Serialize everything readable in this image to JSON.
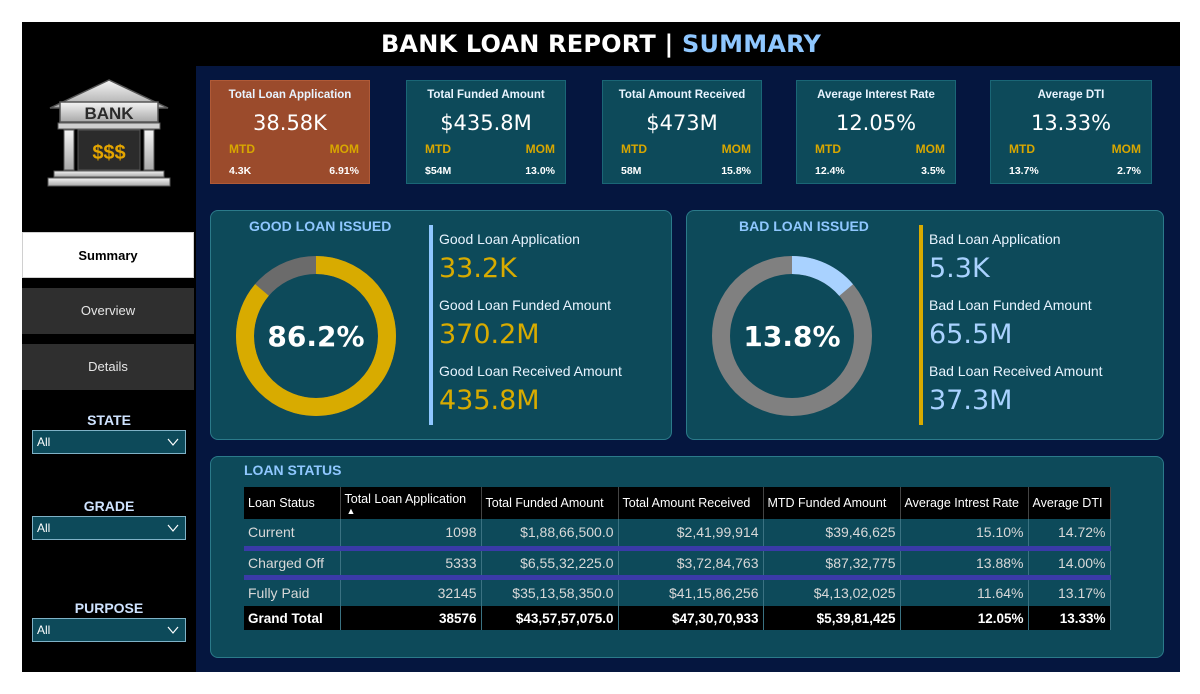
{
  "header": {
    "title_main": "BANK LOAN REPORT | ",
    "title_accent": "SUMMARY"
  },
  "logo": {
    "text": "BANK",
    "symbols": "$$$"
  },
  "nav": [
    {
      "label": "Summary",
      "active": true
    },
    {
      "label": "Overview",
      "active": false
    },
    {
      "label": "Details",
      "active": false
    }
  ],
  "filters": [
    {
      "label": "STATE",
      "value": "All"
    },
    {
      "label": "GRADE",
      "value": "All"
    },
    {
      "label": "PURPOSE",
      "value": "All"
    }
  ],
  "kpis": [
    {
      "title": "Total Loan Application",
      "value": "38.58K",
      "mtd_label": "MTD",
      "mom_label": "MOM",
      "mtd": "4.3K",
      "mom": "6.91%"
    },
    {
      "title": "Total Funded Amount",
      "value": "$435.8M",
      "mtd_label": "MTD",
      "mom_label": "MOM",
      "mtd": "$54M",
      "mom": "13.0%"
    },
    {
      "title": "Total Amount Received",
      "value": "$473M",
      "mtd_label": "MTD",
      "mom_label": "MOM",
      "mtd": "58M",
      "mom": "15.8%"
    },
    {
      "title": "Average Interest  Rate",
      "value": "12.05%",
      "mtd_label": "MTD",
      "mom_label": "MOM",
      "mtd": "12.4%",
      "mom": "3.5%"
    },
    {
      "title": "Average DTI",
      "value": "13.33%",
      "mtd_label": "MTD",
      "mom_label": "MOM",
      "mtd": "13.7%",
      "mom": "2.7%"
    }
  ],
  "good_loan": {
    "title": "GOOD LOAN ISSUED",
    "percent": "86.2%",
    "percent_value": 86.2,
    "application_label": "Good Loan Application",
    "application_value": "33.2K",
    "funded_label": "Good Loan Funded Amount",
    "funded_value": "370.2M",
    "received_label": "Good Loan Received Amount",
    "received_value": "435.8M",
    "ring_color": "#d8ab00",
    "rest_color": "#6b6b6b",
    "value_color": "#d8ab00",
    "bar_color": "#8fc7ff"
  },
  "bad_loan": {
    "title": "BAD LOAN ISSUED",
    "percent": "13.8%",
    "percent_value": 13.8,
    "application_label": "Bad Loan Application",
    "application_value": "5.3K",
    "funded_label": "Bad Loan Funded Amount",
    "funded_value": "65.5M",
    "received_label": "Bad Loan Received Amount",
    "received_value": "37.3M",
    "ring_color": "#a9d2ff",
    "rest_color": "#808080",
    "value_color": "#a9d2ff",
    "bar_color": "#d8ab00"
  },
  "loan_status": {
    "title": "LOAN STATUS",
    "headers": [
      "Loan Status",
      "Total Loan Application",
      "Total Funded Amount",
      "Total Amount Received",
      "MTD Funded Amount",
      "Average Intrest Rate",
      "Average DTI"
    ],
    "rows": [
      [
        "Current",
        "1098",
        "$1,88,66,500.0",
        "$2,41,99,914",
        "$39,46,625",
        "15.10%",
        "14.72%"
      ],
      [
        "Charged Off",
        "5333",
        "$6,55,32,225.0",
        "$3,72,84,763",
        "$87,32,775",
        "13.88%",
        "14.00%"
      ],
      [
        "Fully Paid",
        "32145",
        "$35,13,58,350.0",
        "$41,15,86,256",
        "$4,13,02,025",
        "11.64%",
        "13.17%"
      ]
    ],
    "total": [
      "Grand Total",
      "38576",
      "$43,57,57,075.0",
      "$47,30,70,933",
      "$5,39,81,425",
      "12.05%",
      "13.33%"
    ]
  }
}
